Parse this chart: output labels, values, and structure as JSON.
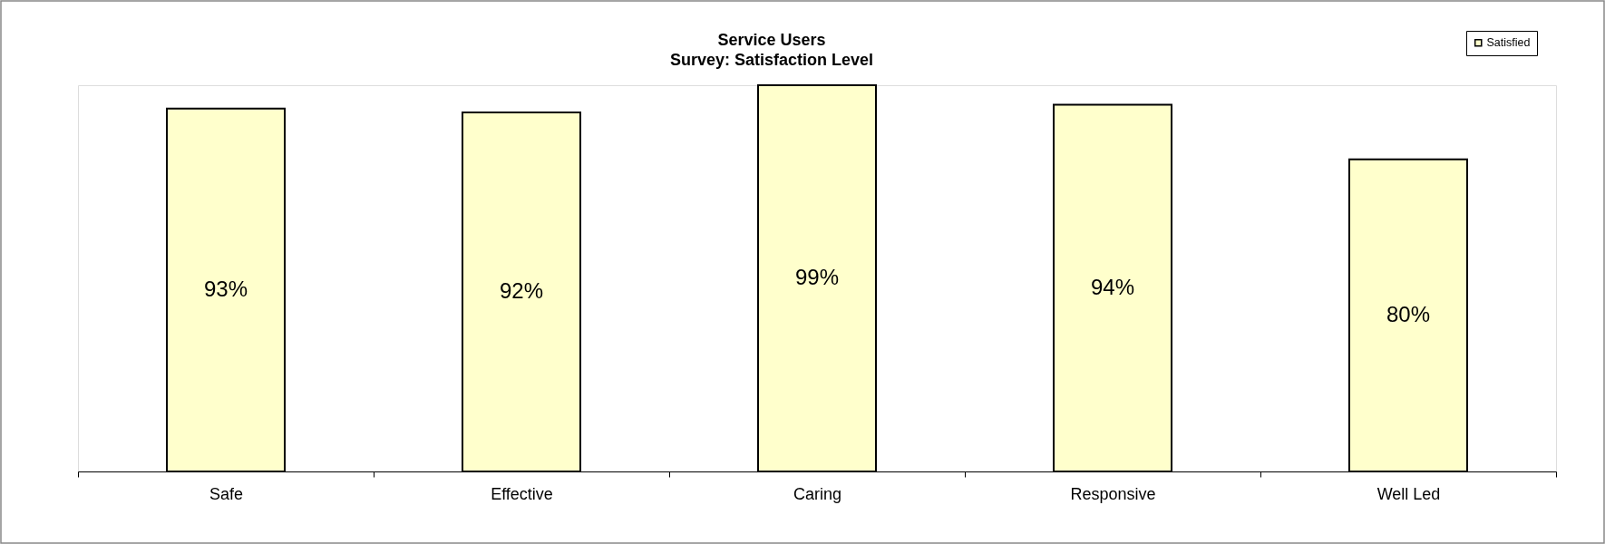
{
  "chart_data": {
    "type": "bar",
    "title": "Service Users",
    "subtitle": "Survey: Satisfaction Level",
    "categories": [
      "Safe",
      "Effective",
      "Caring",
      "Responsive",
      "Well Led"
    ],
    "series": [
      {
        "name": "Satisfied",
        "color": "#ffffcc",
        "values": [
          93,
          92,
          99,
          94,
          80
        ],
        "value_labels": [
          "93%",
          "92%",
          "99%",
          "94%",
          "80%"
        ]
      }
    ],
    "legend": "top right",
    "tick_labels": "x"
  }
}
